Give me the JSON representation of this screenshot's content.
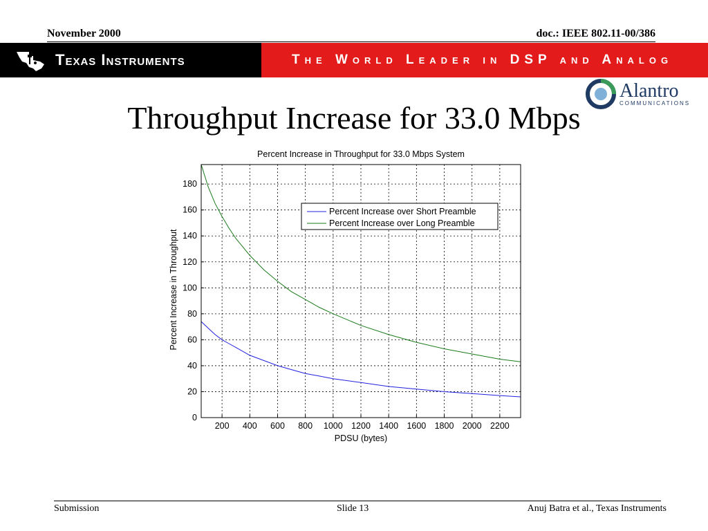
{
  "header": {
    "date": "November 2000",
    "doc_id": "doc.: IEEE 802.11-00/386"
  },
  "banner": {
    "company": "Texas Instruments",
    "tagline": "The World Leader in DSP and Analog",
    "left_color": "#000000",
    "right_color": "#e31b1b"
  },
  "alantro_logo": {
    "name": "Alantro",
    "subtitle": "COMMUNICATIONS"
  },
  "slide_title": "Throughput Increase for 33.0 Mbps",
  "chart_data": {
    "type": "line",
    "title": "Percent Increase in Throughput for 33.0 Mbps System",
    "xlabel": "PDSU (bytes)",
    "ylabel": "Percent Increase in Throughput",
    "xlim": [
      50,
      2350
    ],
    "ylim": [
      0,
      195
    ],
    "xticks": [
      200,
      400,
      600,
      800,
      1000,
      1200,
      1400,
      1600,
      1800,
      2000,
      2200
    ],
    "yticks": [
      0,
      20,
      40,
      60,
      80,
      100,
      120,
      140,
      160,
      180
    ],
    "grid": true,
    "legend_position": "upper-right",
    "x": [
      50,
      100,
      150,
      200,
      250,
      300,
      400,
      500,
      600,
      700,
      800,
      900,
      1000,
      1200,
      1400,
      1600,
      1800,
      2000,
      2200,
      2350
    ],
    "series": [
      {
        "name": "Percent Increase over Short Preamble",
        "color": "#2020e0",
        "values": [
          74,
          69,
          64,
          60,
          57,
          54,
          48,
          44,
          40,
          37,
          34,
          32,
          30,
          27,
          24,
          22,
          20,
          18.5,
          17,
          16
        ]
      },
      {
        "name": "Percent Increase over Long Preamble",
        "color": "#1a7a1a",
        "values": [
          195,
          178,
          165,
          155,
          146,
          138,
          125,
          114,
          105,
          97,
          91,
          85,
          80,
          71,
          64,
          58,
          53,
          49,
          45,
          43
        ]
      }
    ]
  },
  "footer": {
    "left": "Submission",
    "center": "Slide 13",
    "right": "Anuj Batra et al., Texas Instruments"
  }
}
